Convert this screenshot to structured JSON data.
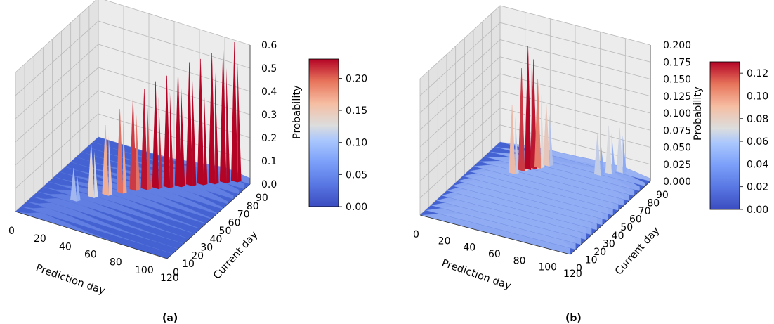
{
  "colors": {
    "pane_left": "#e2e2e2",
    "pane_right": "#ececec",
    "pane_floor": "#dcdcdc",
    "grid": "#b9b9b9",
    "colormap_low": "#3b4cc0",
    "colormap_mid": "#dddddd",
    "colormap_high": "#b40426"
  },
  "chart_data": [
    {
      "type": "surface3d",
      "colormap": "coolwarm",
      "caption": "(a)",
      "xlabel": "Prediction day",
      "ylabel": "Current day",
      "zlabel": "Probability",
      "x_ticks": [
        "0",
        "20",
        "40",
        "60",
        "80",
        "100",
        "120"
      ],
      "y_ticks": [
        "0",
        "10",
        "20",
        "30",
        "40",
        "50",
        "60",
        "70",
        "80",
        "90"
      ],
      "z_ticks": [
        "0.0",
        "0.1",
        "0.2",
        "0.3",
        "0.4",
        "0.5",
        "0.6"
      ],
      "xlim": [
        0,
        120
      ],
      "ylim": [
        0,
        90
      ],
      "zlim": [
        0,
        0.6
      ],
      "colorbar_ticks": [
        "0.00",
        "0.05",
        "0.10",
        "0.15",
        "0.20"
      ],
      "colorbar_range": [
        0,
        0.23
      ],
      "surface": {
        "description_values": "smooth ridge peaking near prediction day 10-20 for early current days, with sharp spikes growing toward 0.6 along the diagonal (prediction day ≈ current day)",
        "spikes": [
          {
            "x": 30,
            "y": 22,
            "z": 0.16
          },
          {
            "x": 38,
            "y": 30,
            "z": 0.25
          },
          {
            "x": 45,
            "y": 36,
            "z": 0.32
          },
          {
            "x": 52,
            "y": 42,
            "z": 0.38
          },
          {
            "x": 58,
            "y": 48,
            "z": 0.42
          },
          {
            "x": 64,
            "y": 52,
            "z": 0.45
          },
          {
            "x": 70,
            "y": 56,
            "z": 0.48
          },
          {
            "x": 76,
            "y": 60,
            "z": 0.5
          },
          {
            "x": 82,
            "y": 64,
            "z": 0.52
          },
          {
            "x": 88,
            "y": 68,
            "z": 0.55
          },
          {
            "x": 94,
            "y": 72,
            "z": 0.56
          },
          {
            "x": 100,
            "y": 76,
            "z": 0.58
          },
          {
            "x": 106,
            "y": 80,
            "z": 0.6
          },
          {
            "x": 112,
            "y": 84,
            "z": 0.62
          }
        ]
      }
    },
    {
      "type": "surface3d",
      "colormap": "coolwarm",
      "caption": "(b)",
      "xlabel": "Prediction day",
      "ylabel": "Current day",
      "zlabel": "Probability",
      "x_ticks": [
        "0",
        "20",
        "40",
        "60",
        "80",
        "100",
        "120"
      ],
      "y_ticks": [
        "0",
        "10",
        "20",
        "30",
        "40",
        "50",
        "60",
        "70",
        "80",
        "90"
      ],
      "z_ticks": [
        "0.000",
        "0.025",
        "0.050",
        "0.075",
        "0.100",
        "0.125",
        "0.150",
        "0.175",
        "0.200"
      ],
      "xlim": [
        0,
        120
      ],
      "ylim": [
        0,
        90
      ],
      "zlim": [
        0,
        0.2
      ],
      "colorbar_ticks": [
        "0.00",
        "0.02",
        "0.04",
        "0.06",
        "0.08",
        "0.10",
        "0.12"
      ],
      "colorbar_range": [
        0,
        0.13
      ],
      "surface": {
        "description_values": "two broad humps: a tall spiky peak near prediction day 40-60 (up to ~0.2) and a smoother hump near prediction day 80-110 (~0.09)",
        "spikes": [
          {
            "x": 38,
            "y": 50,
            "z": 0.12
          },
          {
            "x": 42,
            "y": 55,
            "z": 0.17
          },
          {
            "x": 45,
            "y": 58,
            "z": 0.2
          },
          {
            "x": 48,
            "y": 60,
            "z": 0.18
          },
          {
            "x": 50,
            "y": 62,
            "z": 0.15
          },
          {
            "x": 54,
            "y": 66,
            "z": 0.11
          },
          {
            "x": 92,
            "y": 70,
            "z": 0.08
          },
          {
            "x": 98,
            "y": 74,
            "z": 0.09
          },
          {
            "x": 104,
            "y": 78,
            "z": 0.085
          }
        ]
      }
    }
  ]
}
